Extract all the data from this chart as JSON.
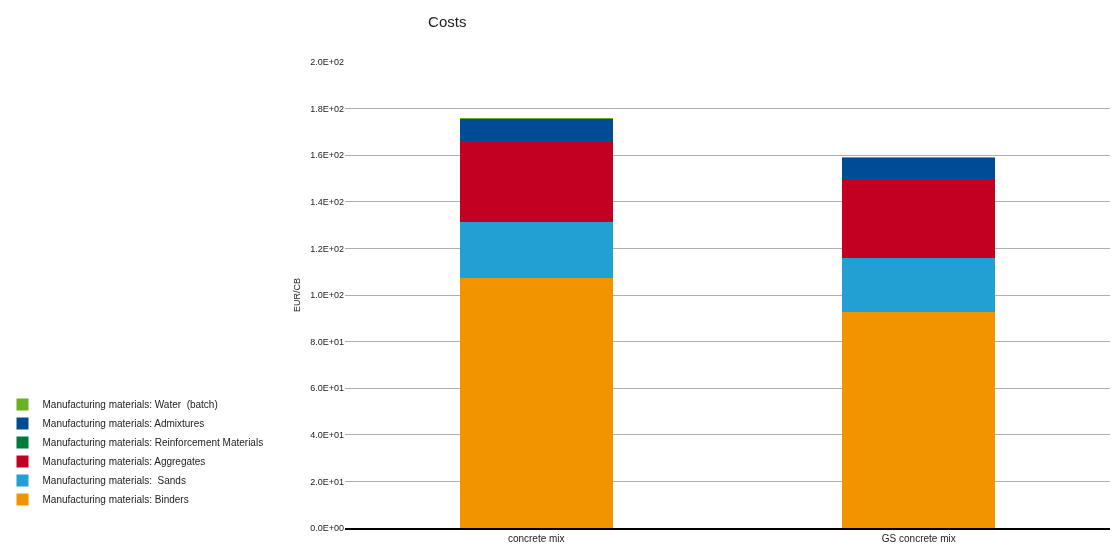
{
  "chart_data": {
    "type": "bar",
    "title": "Costs",
    "ylabel": "EUR/CB",
    "categories": [
      "concrete mix",
      "GS concrete mix"
    ],
    "stacked": true,
    "series": [
      {
        "name": "Manufacturing materials: Binders",
        "color": "#f29400",
        "values": [
          107.5,
          92.5
        ]
      },
      {
        "name": "Manufacturing materials:  Sands",
        "color": "#22a0d3",
        "values": [
          23.7,
          23.2
        ]
      },
      {
        "name": "Manufacturing materials: Aggregates",
        "color": "#c40022",
        "values": [
          34.8,
          34
        ]
      },
      {
        "name": "Manufacturing materials: Reinforcement Materials",
        "color": "#007a3d",
        "values": [
          0,
          0
        ]
      },
      {
        "name": "Manufacturing materials: Admixtures",
        "color": "#004c94",
        "values": [
          9.5,
          9
        ]
      },
      {
        "name": "Manufacturing materials: Water  (batch)",
        "color": "#6ab023",
        "values": [
          0.5,
          0.5
        ]
      }
    ],
    "ylim": [
      0,
      200
    ],
    "yticks": [
      {
        "value": 0,
        "label": "0.0E+00"
      },
      {
        "value": 20,
        "label": "2.0E+01"
      },
      {
        "value": 40,
        "label": "4.0E+01"
      },
      {
        "value": 60,
        "label": "6.0E+01"
      },
      {
        "value": 80,
        "label": "8.0E+01"
      },
      {
        "value": 100,
        "label": "1.0E+02"
      },
      {
        "value": 120,
        "label": "1.2E+02"
      },
      {
        "value": 140,
        "label": "1.4E+02"
      },
      {
        "value": 160,
        "label": "1.6E+02"
      },
      {
        "value": 180,
        "label": "1.8E+02"
      },
      {
        "value": 200,
        "label": "2.0E+02"
      }
    ],
    "grid": "y",
    "legend": "left"
  }
}
